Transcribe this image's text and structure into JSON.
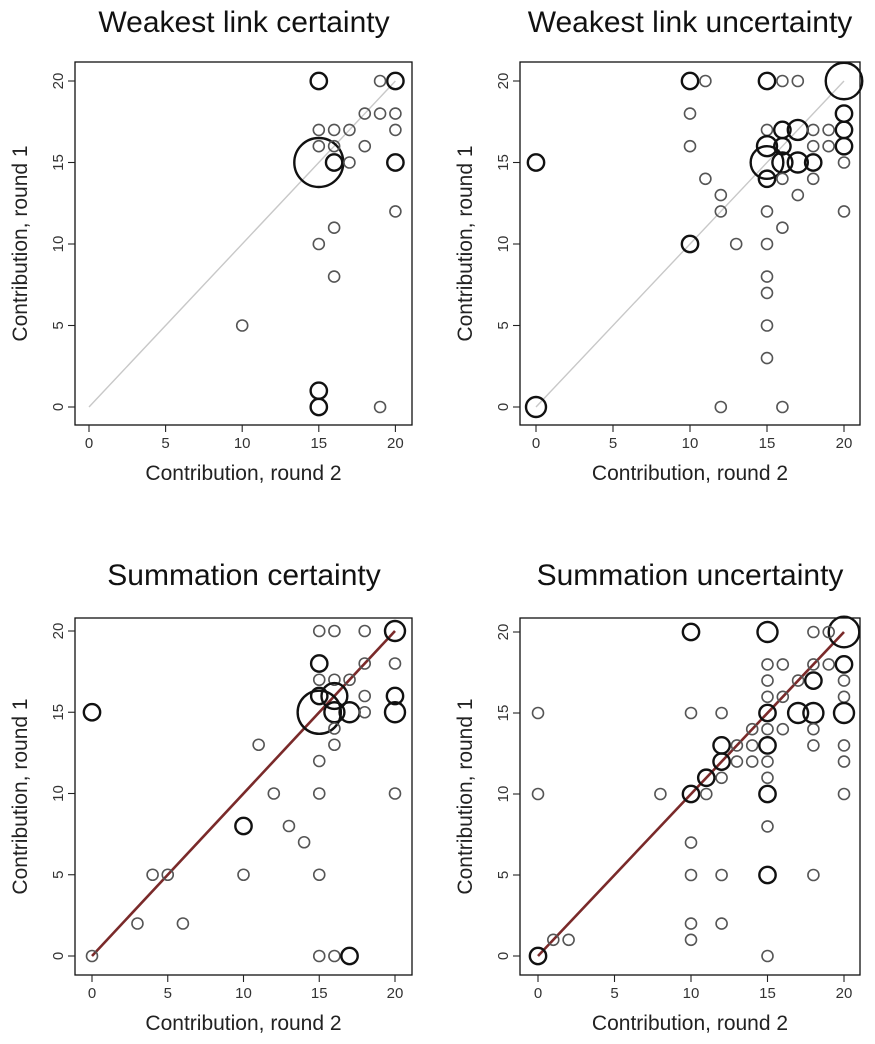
{
  "chart_data": [
    {
      "type": "scatter",
      "title": "Weakest link certainty",
      "xlabel": "Contribution, round 2",
      "ylabel": "Contribution, round 1",
      "xlim": [
        0,
        20
      ],
      "ylim": [
        0,
        20
      ],
      "xticks": [
        "0",
        "5",
        "10",
        "15",
        "20"
      ],
      "yticks": [
        "0",
        "5",
        "10",
        "15",
        "20"
      ],
      "reference_line": {
        "style": "45-degree",
        "color": "#c8c8c8"
      },
      "points": [
        {
          "x": 15,
          "y": 15,
          "size": 18
        },
        {
          "x": 15,
          "y": 20,
          "size": 2
        },
        {
          "x": 20,
          "y": 20,
          "size": 2
        },
        {
          "x": 19,
          "y": 20,
          "size": 1
        },
        {
          "x": 15,
          "y": 17,
          "size": 1
        },
        {
          "x": 16,
          "y": 17,
          "size": 1
        },
        {
          "x": 17,
          "y": 17,
          "size": 1
        },
        {
          "x": 18,
          "y": 18,
          "size": 1
        },
        {
          "x": 19,
          "y": 18,
          "size": 1
        },
        {
          "x": 20,
          "y": 18,
          "size": 1
        },
        {
          "x": 15,
          "y": 16,
          "size": 1
        },
        {
          "x": 16,
          "y": 16,
          "size": 1
        },
        {
          "x": 18,
          "y": 16,
          "size": 1
        },
        {
          "x": 16,
          "y": 15,
          "size": 2
        },
        {
          "x": 17,
          "y": 15,
          "size": 1
        },
        {
          "x": 20,
          "y": 17,
          "size": 1
        },
        {
          "x": 20,
          "y": 15,
          "size": 2
        },
        {
          "x": 20,
          "y": 12,
          "size": 1
        },
        {
          "x": 16,
          "y": 11,
          "size": 1
        },
        {
          "x": 15,
          "y": 10,
          "size": 1
        },
        {
          "x": 16,
          "y": 8,
          "size": 1
        },
        {
          "x": 10,
          "y": 5,
          "size": 1
        },
        {
          "x": 15,
          "y": 1,
          "size": 2
        },
        {
          "x": 15,
          "y": 0,
          "size": 2
        },
        {
          "x": 19,
          "y": 0,
          "size": 1
        }
      ]
    },
    {
      "type": "scatter",
      "title": "Weakest link uncertainty",
      "xlabel": "Contribution, round 2",
      "ylabel": "Contribution, round 1",
      "xlim": [
        0,
        20
      ],
      "ylim": [
        0,
        20
      ],
      "xticks": [
        "0",
        "5",
        "10",
        "15",
        "20"
      ],
      "yticks": [
        "0",
        "5",
        "10",
        "15",
        "20"
      ],
      "reference_line": {
        "style": "45-degree",
        "color": "#c8c8c8"
      },
      "points": [
        {
          "x": 20,
          "y": 20,
          "size": 10
        },
        {
          "x": 10,
          "y": 20,
          "size": 2
        },
        {
          "x": 11,
          "y": 20,
          "size": 1
        },
        {
          "x": 15,
          "y": 20,
          "size": 2
        },
        {
          "x": 16,
          "y": 20,
          "size": 1
        },
        {
          "x": 17,
          "y": 20,
          "size": 1
        },
        {
          "x": 10,
          "y": 18,
          "size": 1
        },
        {
          "x": 20,
          "y": 18,
          "size": 2
        },
        {
          "x": 15,
          "y": 17,
          "size": 1
        },
        {
          "x": 16,
          "y": 17,
          "size": 2
        },
        {
          "x": 17,
          "y": 17,
          "size": 3
        },
        {
          "x": 18,
          "y": 17,
          "size": 1
        },
        {
          "x": 19,
          "y": 17,
          "size": 1
        },
        {
          "x": 20,
          "y": 17,
          "size": 2
        },
        {
          "x": 10,
          "y": 16,
          "size": 1
        },
        {
          "x": 15,
          "y": 16,
          "size": 3
        },
        {
          "x": 16,
          "y": 16,
          "size": 2
        },
        {
          "x": 18,
          "y": 16,
          "size": 1
        },
        {
          "x": 19,
          "y": 16,
          "size": 1
        },
        {
          "x": 20,
          "y": 16,
          "size": 2
        },
        {
          "x": 0,
          "y": 15,
          "size": 2
        },
        {
          "x": 15,
          "y": 15,
          "size": 8
        },
        {
          "x": 16,
          "y": 15,
          "size": 3
        },
        {
          "x": 17,
          "y": 15,
          "size": 3
        },
        {
          "x": 18,
          "y": 15,
          "size": 2
        },
        {
          "x": 20,
          "y": 15,
          "size": 1
        },
        {
          "x": 11,
          "y": 14,
          "size": 1
        },
        {
          "x": 15,
          "y": 14,
          "size": 2
        },
        {
          "x": 16,
          "y": 14,
          "size": 1
        },
        {
          "x": 18,
          "y": 14,
          "size": 1
        },
        {
          "x": 12,
          "y": 13,
          "size": 1
        },
        {
          "x": 17,
          "y": 13,
          "size": 1
        },
        {
          "x": 12,
          "y": 12,
          "size": 1
        },
        {
          "x": 15,
          "y": 12,
          "size": 1
        },
        {
          "x": 20,
          "y": 12,
          "size": 1
        },
        {
          "x": 16,
          "y": 11,
          "size": 1
        },
        {
          "x": 10,
          "y": 10,
          "size": 2
        },
        {
          "x": 13,
          "y": 10,
          "size": 1
        },
        {
          "x": 15,
          "y": 10,
          "size": 1
        },
        {
          "x": 15,
          "y": 8,
          "size": 1
        },
        {
          "x": 15,
          "y": 7,
          "size": 1
        },
        {
          "x": 15,
          "y": 5,
          "size": 1
        },
        {
          "x": 15,
          "y": 3,
          "size": 1
        },
        {
          "x": 0,
          "y": 0,
          "size": 3
        },
        {
          "x": 12,
          "y": 0,
          "size": 1
        },
        {
          "x": 16,
          "y": 0,
          "size": 1
        }
      ]
    },
    {
      "type": "scatter",
      "title": "Summation certainty",
      "xlabel": "Contribution, round 2",
      "ylabel": "Contribution, round 1",
      "xlim": [
        0,
        20
      ],
      "ylim": [
        0,
        20
      ],
      "xticks": [
        "0",
        "5",
        "10",
        "15",
        "20"
      ],
      "yticks": [
        "0",
        "5",
        "10",
        "15",
        "20"
      ],
      "reference_line": {
        "style": "45-degree",
        "color": "#7a2a2a"
      },
      "points": [
        {
          "x": 15,
          "y": 15,
          "size": 14
        },
        {
          "x": 15,
          "y": 20,
          "size": 1
        },
        {
          "x": 16,
          "y": 20,
          "size": 1
        },
        {
          "x": 18,
          "y": 20,
          "size": 1
        },
        {
          "x": 20,
          "y": 20,
          "size": 3
        },
        {
          "x": 15,
          "y": 18,
          "size": 2
        },
        {
          "x": 18,
          "y": 18,
          "size": 1
        },
        {
          "x": 20,
          "y": 18,
          "size": 1
        },
        {
          "x": 15,
          "y": 17,
          "size": 1
        },
        {
          "x": 16,
          "y": 17,
          "size": 1
        },
        {
          "x": 17,
          "y": 17,
          "size": 1
        },
        {
          "x": 15,
          "y": 16,
          "size": 2
        },
        {
          "x": 16,
          "y": 16,
          "size": 5
        },
        {
          "x": 18,
          "y": 16,
          "size": 1
        },
        {
          "x": 20,
          "y": 16,
          "size": 2
        },
        {
          "x": 0,
          "y": 15,
          "size": 2
        },
        {
          "x": 16,
          "y": 15,
          "size": 3
        },
        {
          "x": 17,
          "y": 15,
          "size": 3
        },
        {
          "x": 18,
          "y": 15,
          "size": 1
        },
        {
          "x": 20,
          "y": 15,
          "size": 3
        },
        {
          "x": 16,
          "y": 14,
          "size": 1
        },
        {
          "x": 16,
          "y": 13,
          "size": 1
        },
        {
          "x": 11,
          "y": 13,
          "size": 1
        },
        {
          "x": 15,
          "y": 12,
          "size": 1
        },
        {
          "x": 12,
          "y": 10,
          "size": 1
        },
        {
          "x": 15,
          "y": 10,
          "size": 1
        },
        {
          "x": 20,
          "y": 10,
          "size": 1
        },
        {
          "x": 10,
          "y": 8,
          "size": 2
        },
        {
          "x": 13,
          "y": 8,
          "size": 1
        },
        {
          "x": 14,
          "y": 7,
          "size": 1
        },
        {
          "x": 4,
          "y": 5,
          "size": 1
        },
        {
          "x": 5,
          "y": 5,
          "size": 1
        },
        {
          "x": 10,
          "y": 5,
          "size": 1
        },
        {
          "x": 15,
          "y": 5,
          "size": 1
        },
        {
          "x": 3,
          "y": 2,
          "size": 1
        },
        {
          "x": 6,
          "y": 2,
          "size": 1
        },
        {
          "x": 0,
          "y": 0,
          "size": 1
        },
        {
          "x": 15,
          "y": 0,
          "size": 1
        },
        {
          "x": 16,
          "y": 0,
          "size": 1
        },
        {
          "x": 17,
          "y": 0,
          "size": 2
        }
      ]
    },
    {
      "type": "scatter",
      "title": "Summation uncertainty",
      "xlabel": "Contribution, round 2",
      "ylabel": "Contribution, round 1",
      "xlim": [
        0,
        20
      ],
      "ylim": [
        0,
        20
      ],
      "xticks": [
        "0",
        "5",
        "10",
        "15",
        "20"
      ],
      "yticks": [
        "0",
        "5",
        "10",
        "15",
        "20"
      ],
      "reference_line": {
        "style": "45-degree",
        "color": "#7a2a2a"
      },
      "points": [
        {
          "x": 20,
          "y": 20,
          "size": 7
        },
        {
          "x": 10,
          "y": 20,
          "size": 2
        },
        {
          "x": 15,
          "y": 20,
          "size": 3
        },
        {
          "x": 18,
          "y": 20,
          "size": 1
        },
        {
          "x": 19,
          "y": 20,
          "size": 1
        },
        {
          "x": 15,
          "y": 18,
          "size": 1
        },
        {
          "x": 16,
          "y": 18,
          "size": 1
        },
        {
          "x": 18,
          "y": 18,
          "size": 1
        },
        {
          "x": 19,
          "y": 18,
          "size": 1
        },
        {
          "x": 20,
          "y": 18,
          "size": 2
        },
        {
          "x": 15,
          "y": 17,
          "size": 1
        },
        {
          "x": 17,
          "y": 17,
          "size": 1
        },
        {
          "x": 18,
          "y": 17,
          "size": 2
        },
        {
          "x": 20,
          "y": 17,
          "size": 1
        },
        {
          "x": 15,
          "y": 16,
          "size": 1
        },
        {
          "x": 16,
          "y": 16,
          "size": 1
        },
        {
          "x": 20,
          "y": 16,
          "size": 1
        },
        {
          "x": 0,
          "y": 15,
          "size": 1
        },
        {
          "x": 10,
          "y": 15,
          "size": 1
        },
        {
          "x": 12,
          "y": 15,
          "size": 1
        },
        {
          "x": 15,
          "y": 15,
          "size": 2
        },
        {
          "x": 17,
          "y": 15,
          "size": 3
        },
        {
          "x": 18,
          "y": 15,
          "size": 3
        },
        {
          "x": 20,
          "y": 15,
          "size": 3
        },
        {
          "x": 14,
          "y": 14,
          "size": 1
        },
        {
          "x": 15,
          "y": 14,
          "size": 1
        },
        {
          "x": 16,
          "y": 14,
          "size": 1
        },
        {
          "x": 18,
          "y": 14,
          "size": 1
        },
        {
          "x": 12,
          "y": 13,
          "size": 2
        },
        {
          "x": 13,
          "y": 13,
          "size": 1
        },
        {
          "x": 14,
          "y": 13,
          "size": 1
        },
        {
          "x": 15,
          "y": 13,
          "size": 2
        },
        {
          "x": 18,
          "y": 13,
          "size": 1
        },
        {
          "x": 20,
          "y": 13,
          "size": 1
        },
        {
          "x": 12,
          "y": 12,
          "size": 2
        },
        {
          "x": 13,
          "y": 12,
          "size": 1
        },
        {
          "x": 14,
          "y": 12,
          "size": 1
        },
        {
          "x": 15,
          "y": 12,
          "size": 1
        },
        {
          "x": 20,
          "y": 12,
          "size": 1
        },
        {
          "x": 11,
          "y": 11,
          "size": 2
        },
        {
          "x": 12,
          "y": 11,
          "size": 1
        },
        {
          "x": 15,
          "y": 11,
          "size": 1
        },
        {
          "x": 0,
          "y": 10,
          "size": 1
        },
        {
          "x": 8,
          "y": 10,
          "size": 1
        },
        {
          "x": 10,
          "y": 10,
          "size": 2
        },
        {
          "x": 11,
          "y": 10,
          "size": 1
        },
        {
          "x": 15,
          "y": 10,
          "size": 2
        },
        {
          "x": 20,
          "y": 10,
          "size": 1
        },
        {
          "x": 15,
          "y": 8,
          "size": 1
        },
        {
          "x": 10,
          "y": 7,
          "size": 1
        },
        {
          "x": 10,
          "y": 5,
          "size": 1
        },
        {
          "x": 12,
          "y": 5,
          "size": 1
        },
        {
          "x": 15,
          "y": 5,
          "size": 2
        },
        {
          "x": 18,
          "y": 5,
          "size": 1
        },
        {
          "x": 10,
          "y": 2,
          "size": 1
        },
        {
          "x": 12,
          "y": 2,
          "size": 1
        },
        {
          "x": 1,
          "y": 1,
          "size": 1
        },
        {
          "x": 2,
          "y": 1,
          "size": 1
        },
        {
          "x": 10,
          "y": 1,
          "size": 1
        },
        {
          "x": 0,
          "y": 0,
          "size": 2
        },
        {
          "x": 15,
          "y": 0,
          "size": 1
        }
      ]
    }
  ]
}
